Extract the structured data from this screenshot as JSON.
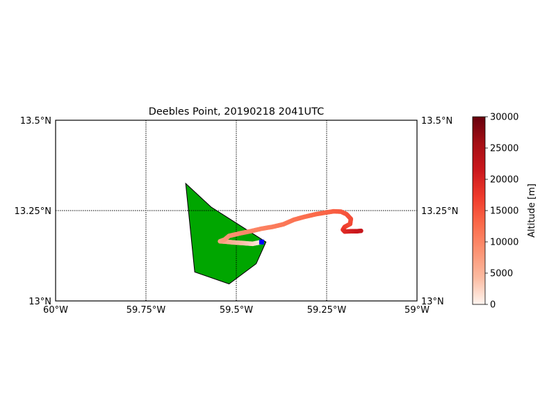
{
  "title": "Deebles Point, 20190218 2041UTC",
  "map": {
    "lon_range": [
      -60.0,
      -59.0
    ],
    "lat_range": [
      13.0,
      13.5
    ],
    "x_ticks": [
      {
        "value": -60.0,
        "label": "60°W"
      },
      {
        "value": -59.75,
        "label": "59.75°W"
      },
      {
        "value": -59.5,
        "label": "59.5°W"
      },
      {
        "value": -59.25,
        "label": "59.25°W"
      },
      {
        "value": -59.0,
        "label": "59°W"
      }
    ],
    "y_ticks": [
      {
        "value": 13.0,
        "label": "13°N"
      },
      {
        "value": 13.25,
        "label": "13.25°N"
      },
      {
        "value": 13.5,
        "label": "13.5°N"
      }
    ],
    "gridlines": "dotted",
    "land_color": "#00a600",
    "land_outline_color": "#000000",
    "island_outline": [
      [
        -59.64,
        13.325
      ],
      [
        -59.615,
        13.08
      ],
      [
        -59.52,
        13.047
      ],
      [
        -59.445,
        13.103
      ],
      [
        -59.418,
        13.163
      ],
      [
        -59.57,
        13.26
      ],
      [
        -59.64,
        13.325
      ]
    ],
    "launch_site": {
      "lon": -59.43,
      "lat": 13.163,
      "color": "#0000ff"
    }
  },
  "chart_data": {
    "type": "scatter",
    "title": "Deebles Point, 20190218 2041UTC",
    "xlabel": "",
    "ylabel": "",
    "xlim": [
      -60.0,
      -59.0
    ],
    "ylim": [
      13.0,
      13.5
    ],
    "color_variable": "Altitude [m]",
    "track": [
      {
        "lon": -59.43,
        "lat": 13.163,
        "alt": 0
      },
      {
        "lon": -59.455,
        "lat": 13.158,
        "alt": 2000
      },
      {
        "lon": -59.48,
        "lat": 13.16,
        "alt": 3500
      },
      {
        "lon": -59.51,
        "lat": 13.162,
        "alt": 5000
      },
      {
        "lon": -59.53,
        "lat": 13.164,
        "alt": 6000
      },
      {
        "lon": -59.545,
        "lat": 13.165,
        "alt": 7000
      },
      {
        "lon": -59.532,
        "lat": 13.17,
        "alt": 7800
      },
      {
        "lon": -59.52,
        "lat": 13.18,
        "alt": 8500
      },
      {
        "lon": -59.49,
        "lat": 13.187,
        "alt": 9200
      },
      {
        "lon": -59.46,
        "lat": 13.193,
        "alt": 9800
      },
      {
        "lon": -59.43,
        "lat": 13.2,
        "alt": 10300
      },
      {
        "lon": -59.4,
        "lat": 13.205,
        "alt": 10800
      },
      {
        "lon": -59.37,
        "lat": 13.212,
        "alt": 11300
      },
      {
        "lon": -59.34,
        "lat": 13.225,
        "alt": 11800
      },
      {
        "lon": -59.31,
        "lat": 13.233,
        "alt": 12300
      },
      {
        "lon": -59.28,
        "lat": 13.24,
        "alt": 12800
      },
      {
        "lon": -59.25,
        "lat": 13.245,
        "alt": 13300
      },
      {
        "lon": -59.23,
        "lat": 13.248,
        "alt": 13800
      },
      {
        "lon": -59.21,
        "lat": 13.247,
        "alt": 14300
      },
      {
        "lon": -59.195,
        "lat": 13.24,
        "alt": 14800
      },
      {
        "lon": -59.183,
        "lat": 13.227,
        "alt": 15300
      },
      {
        "lon": -59.185,
        "lat": 13.213,
        "alt": 15800
      },
      {
        "lon": -59.2,
        "lat": 13.205,
        "alt": 16500
      },
      {
        "lon": -59.205,
        "lat": 13.197,
        "alt": 17500
      },
      {
        "lon": -59.2,
        "lat": 13.192,
        "alt": 19000
      },
      {
        "lon": -59.18,
        "lat": 13.193,
        "alt": 20500
      },
      {
        "lon": -59.165,
        "lat": 13.193,
        "alt": 21500
      },
      {
        "lon": -59.155,
        "lat": 13.194,
        "alt": 22000
      }
    ]
  },
  "colorbar": {
    "label": "Altitude [m]",
    "min": 0,
    "max": 30000,
    "ticks": [
      {
        "value": 0,
        "label": "0"
      },
      {
        "value": 5000,
        "label": "5000"
      },
      {
        "value": 10000,
        "label": "10000"
      },
      {
        "value": 15000,
        "label": "15000"
      },
      {
        "value": 20000,
        "label": "20000"
      },
      {
        "value": 25000,
        "label": "25000"
      },
      {
        "value": 30000,
        "label": "30000"
      }
    ],
    "colormap_stops": [
      "#fff5f0",
      "#fcbba1",
      "#fc9272",
      "#fb6a4a",
      "#ef3b2c",
      "#cb181d",
      "#a50f15",
      "#67000d"
    ]
  }
}
